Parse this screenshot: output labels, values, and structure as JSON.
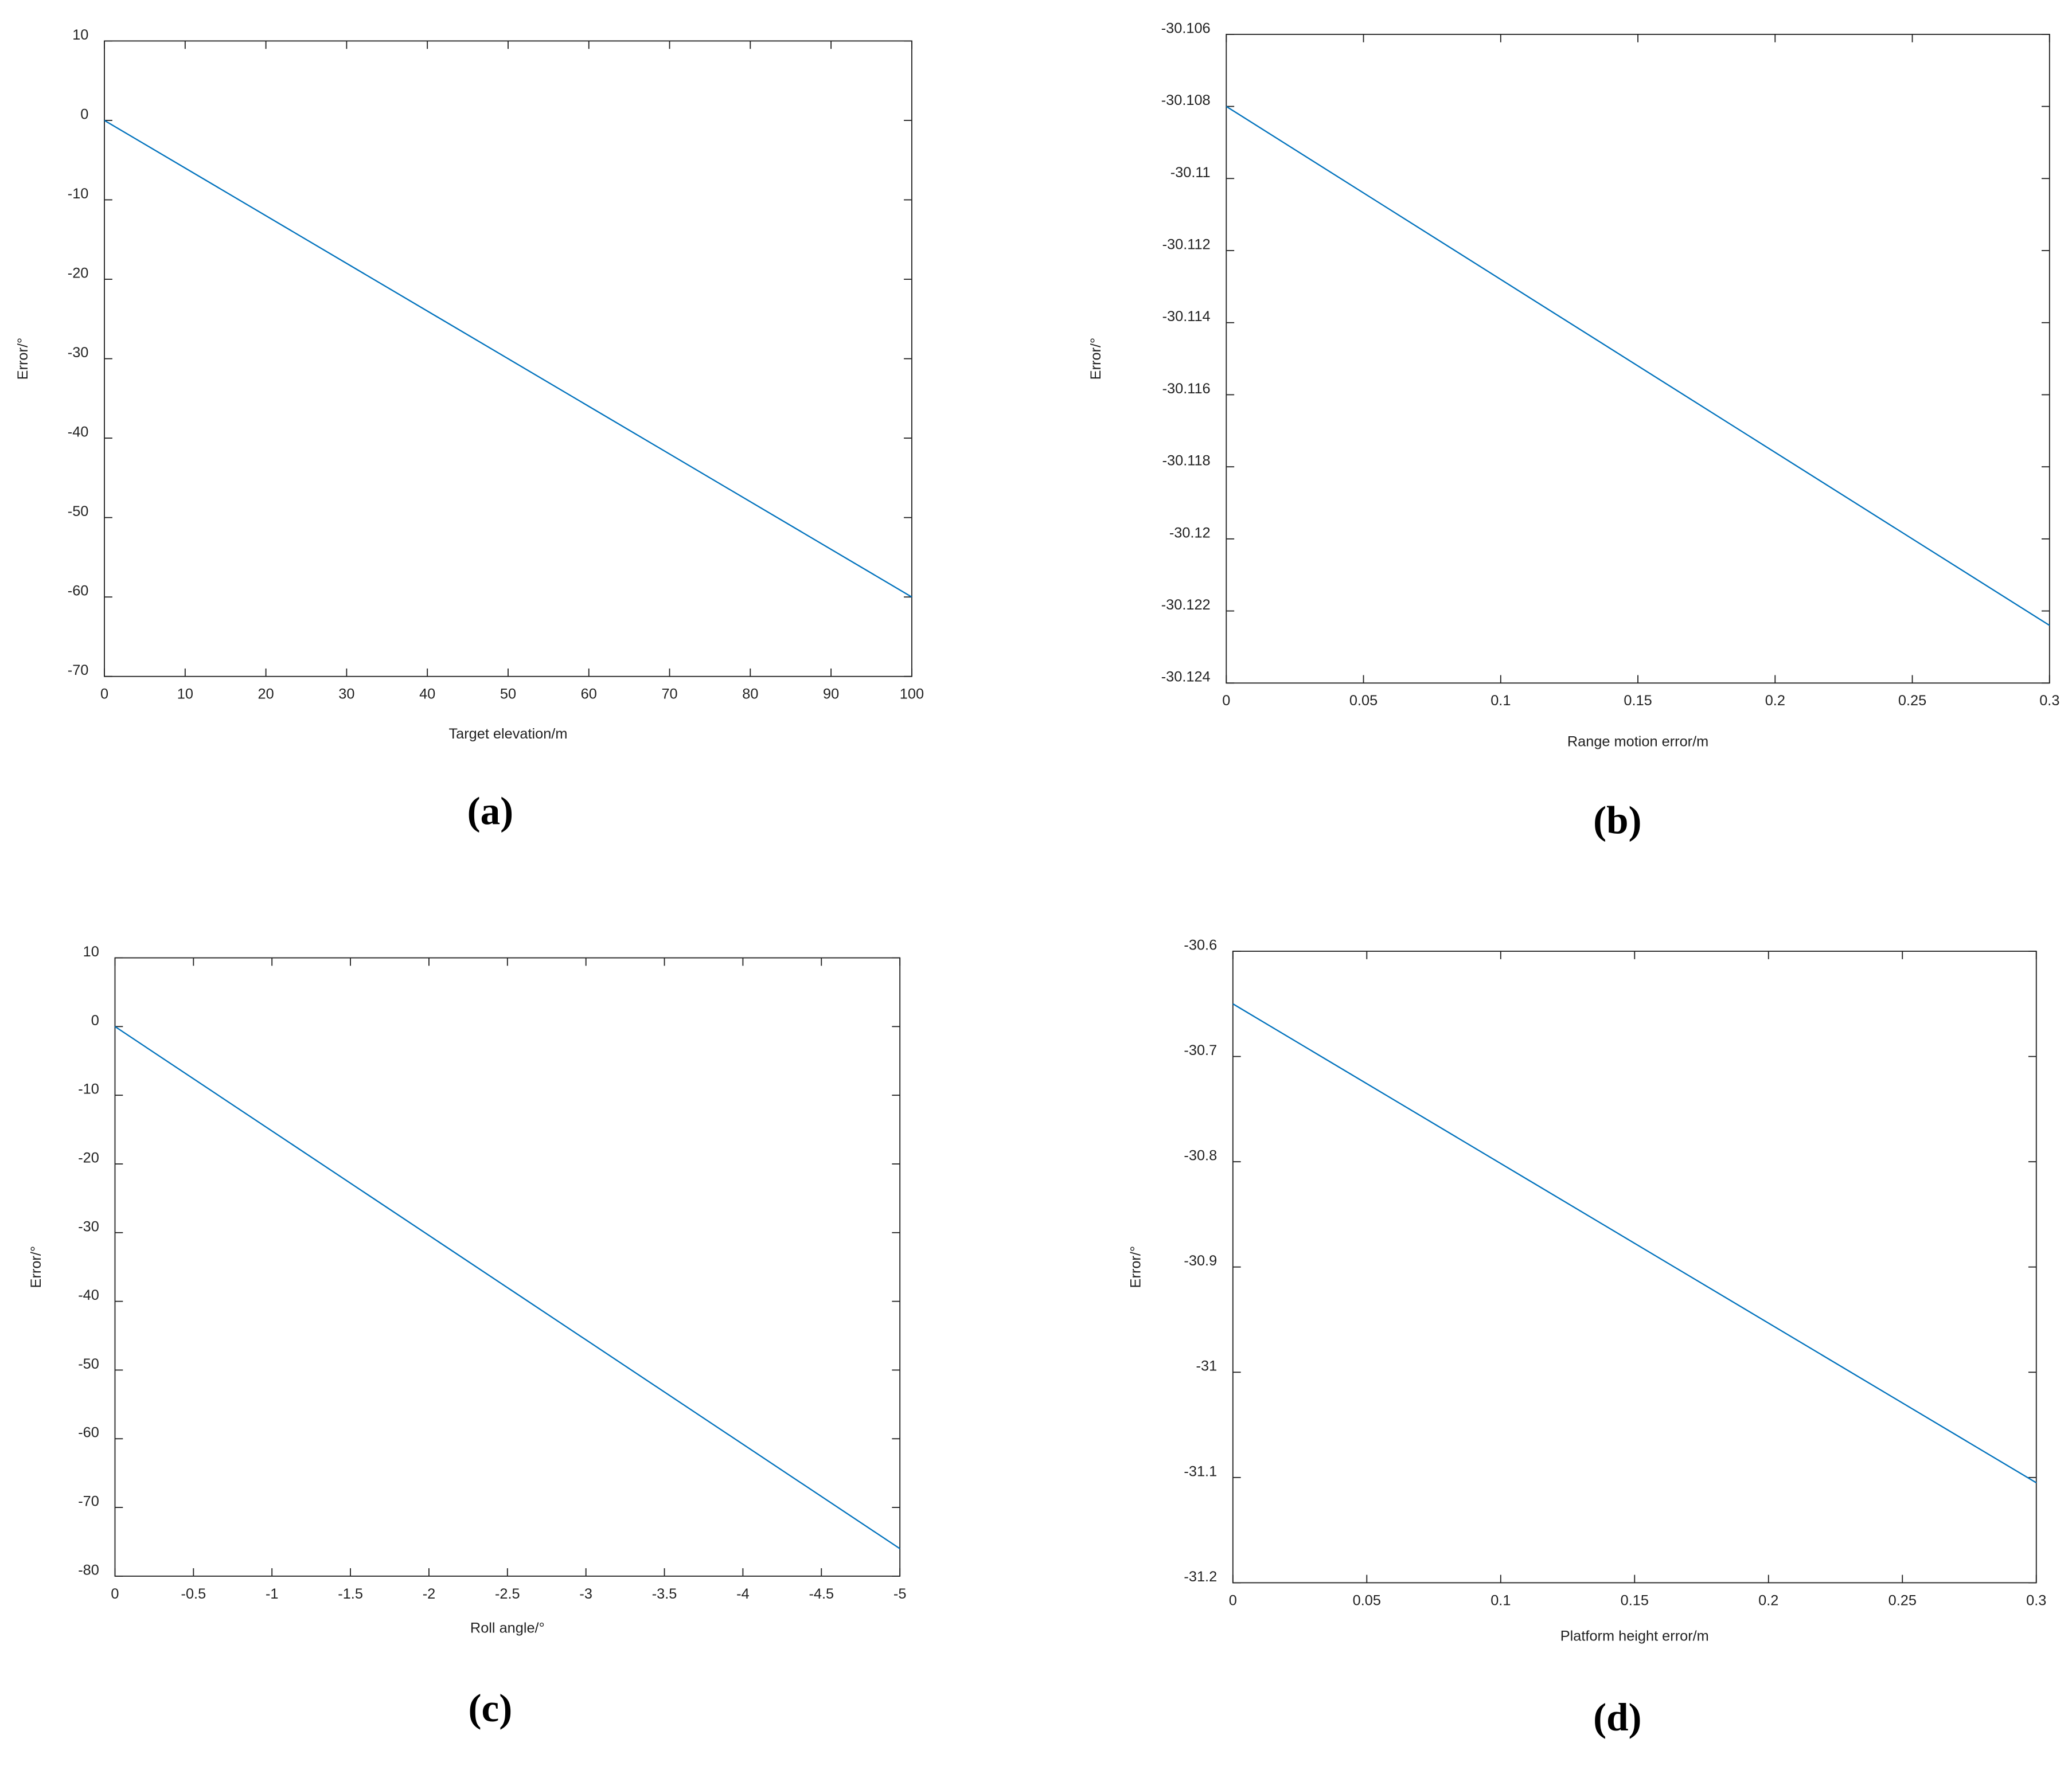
{
  "chart_data": [
    {
      "type": "line",
      "label": "(a)",
      "xlabel": "Target elevation/m",
      "ylabel": "Error/°",
      "x": [
        0,
        100
      ],
      "series": [
        {
          "values": [
            0,
            -60
          ],
          "color": "#0072bd"
        }
      ],
      "xlim": [
        0,
        100
      ],
      "ylim": [
        -70,
        10
      ],
      "xticks": [
        0,
        10,
        20,
        30,
        40,
        50,
        60,
        70,
        80,
        90,
        100
      ],
      "yticks": [
        -70,
        -60,
        -50,
        -40,
        -30,
        -20,
        -10,
        0,
        10
      ]
    },
    {
      "type": "line",
      "label": "(b)",
      "xlabel": "Range motion error/m",
      "ylabel": "Error/°",
      "x": [
        0,
        0.3
      ],
      "series": [
        {
          "values": [
            -30.108,
            -30.1224
          ],
          "color": "#0072bd"
        }
      ],
      "xlim": [
        0,
        0.3
      ],
      "ylim": [
        -30.124,
        -30.106
      ],
      "xticks": [
        0,
        0.05,
        0.1,
        0.15,
        0.2,
        0.25,
        0.3
      ],
      "yticks": [
        -30.124,
        -30.122,
        -30.12,
        -30.118,
        -30.116,
        -30.114,
        -30.112,
        -30.11,
        -30.108,
        -30.106
      ]
    },
    {
      "type": "line",
      "label": "(c)",
      "xlabel": "Roll angle/°",
      "ylabel": "Error/°",
      "x": [
        0,
        -5
      ],
      "series": [
        {
          "values": [
            0,
            -76
          ],
          "color": "#0072bd"
        }
      ],
      "xlim": [
        0,
        -5
      ],
      "ylim": [
        -80,
        10
      ],
      "xticks": [
        0,
        -0.5,
        -1,
        -1.5,
        -2,
        -2.5,
        -3,
        -3.5,
        -4,
        -4.5,
        -5
      ],
      "yticks": [
        -80,
        -70,
        -60,
        -50,
        -40,
        -30,
        -20,
        -10,
        0,
        10
      ]
    },
    {
      "type": "line",
      "label": "(d)",
      "xlabel": "Platform height error/m",
      "ylabel": "Error/°",
      "x": [
        0,
        0.3
      ],
      "series": [
        {
          "values": [
            -30.65,
            -31.105
          ],
          "color": "#0072bd"
        }
      ],
      "xlim": [
        0,
        0.3
      ],
      "ylim": [
        -31.2,
        -30.6
      ],
      "xticks": [
        0,
        0.05,
        0.1,
        0.15,
        0.2,
        0.25,
        0.3
      ],
      "yticks": [
        -31.2,
        -31.1,
        -31,
        -30.9,
        -30.8,
        -30.7,
        -30.6
      ]
    }
  ]
}
